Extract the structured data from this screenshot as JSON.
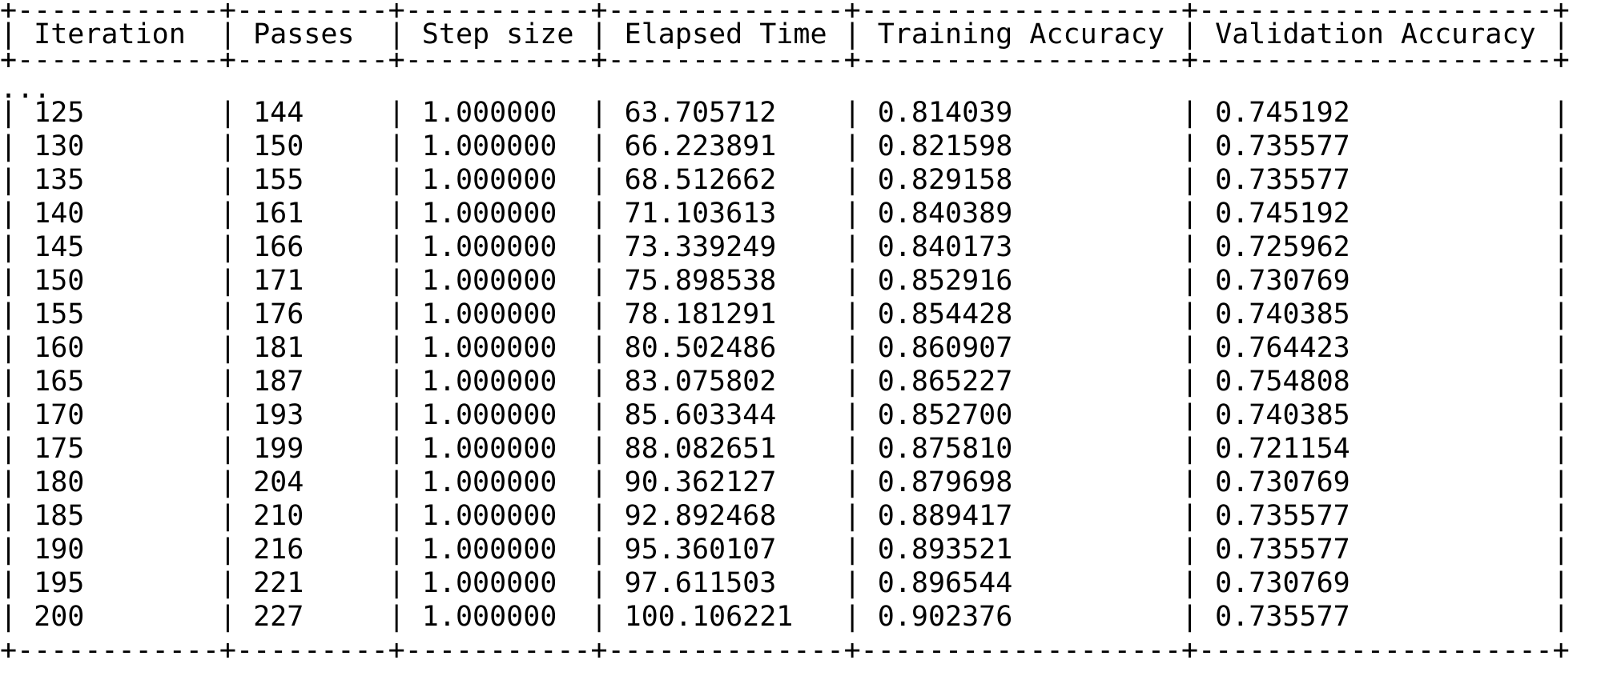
{
  "table": {
    "columns": [
      "Iteration",
      "Passes",
      "Step size",
      "Elapsed Time",
      "Training Accuracy",
      "Validation Accuracy"
    ],
    "ellipsis": "...",
    "rows": [
      [
        "125",
        "144",
        "1.000000",
        "63.705712",
        "0.814039",
        "0.745192"
      ],
      [
        "130",
        "150",
        "1.000000",
        "66.223891",
        "0.821598",
        "0.735577"
      ],
      [
        "135",
        "155",
        "1.000000",
        "68.512662",
        "0.829158",
        "0.735577"
      ],
      [
        "140",
        "161",
        "1.000000",
        "71.103613",
        "0.840389",
        "0.745192"
      ],
      [
        "145",
        "166",
        "1.000000",
        "73.339249",
        "0.840173",
        "0.725962"
      ],
      [
        "150",
        "171",
        "1.000000",
        "75.898538",
        "0.852916",
        "0.730769"
      ],
      [
        "155",
        "176",
        "1.000000",
        "78.181291",
        "0.854428",
        "0.740385"
      ],
      [
        "160",
        "181",
        "1.000000",
        "80.502486",
        "0.860907",
        "0.764423"
      ],
      [
        "165",
        "187",
        "1.000000",
        "83.075802",
        "0.865227",
        "0.754808"
      ],
      [
        "170",
        "193",
        "1.000000",
        "85.603344",
        "0.852700",
        "0.740385"
      ],
      [
        "175",
        "199",
        "1.000000",
        "88.082651",
        "0.875810",
        "0.721154"
      ],
      [
        "180",
        "204",
        "1.000000",
        "90.362127",
        "0.879698",
        "0.730769"
      ],
      [
        "185",
        "210",
        "1.000000",
        "92.892468",
        "0.889417",
        "0.735577"
      ],
      [
        "190",
        "216",
        "1.000000",
        "95.360107",
        "0.893521",
        "0.735577"
      ],
      [
        "195",
        "221",
        "1.000000",
        "97.611503",
        "0.896544",
        "0.730769"
      ],
      [
        "200",
        "227",
        "1.000000",
        "100.106221",
        "0.902376",
        "0.735577"
      ]
    ]
  }
}
